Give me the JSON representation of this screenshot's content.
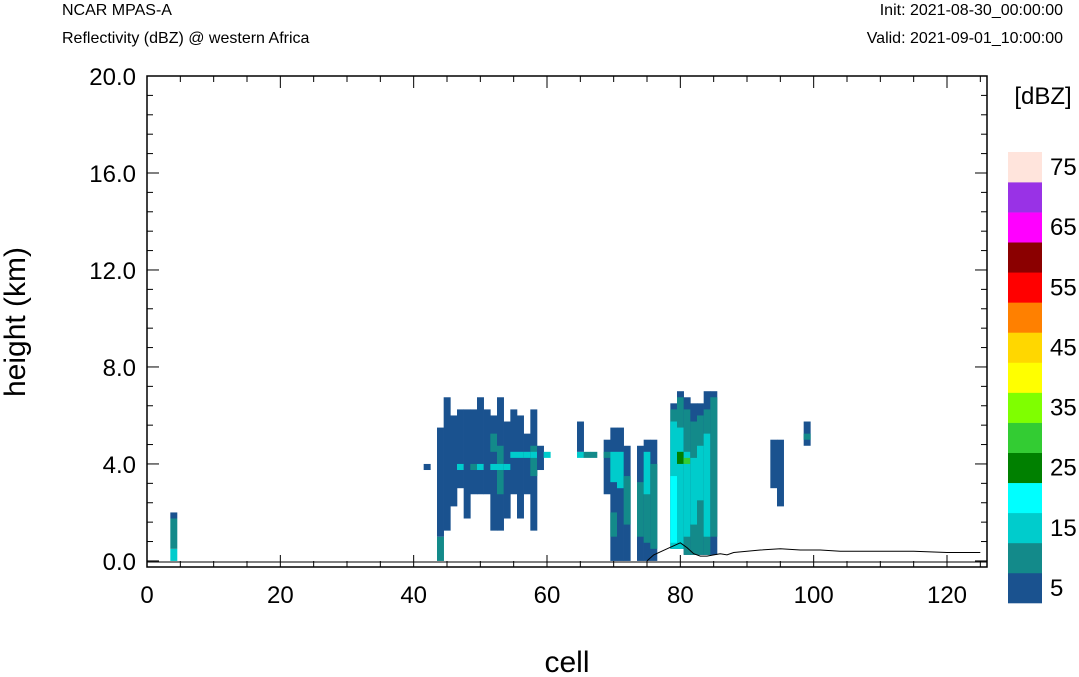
{
  "header": {
    "model": "NCAR MPAS-A",
    "field": "Reflectivity (dBZ) @ western Africa",
    "init": "Init: 2021-08-30_00:00:00",
    "valid": "Valid: 2021-09-01_10:00:00"
  },
  "chart_data": {
    "type": "heatmap",
    "title": "",
    "xlabel": "cell",
    "ylabel": "height (km)",
    "xlim": [
      0,
      126
    ],
    "ylim": [
      -0.25,
      20
    ],
    "xticks": [
      0,
      20,
      40,
      60,
      80,
      100,
      120
    ],
    "xtick_labels": [
      "0",
      "20",
      "40",
      "60",
      "80",
      "100",
      "120"
    ],
    "yticks": [
      0,
      4,
      8,
      12,
      16,
      20
    ],
    "ytick_labels": [
      "0.0",
      "4.0",
      "8.0",
      "12.0",
      "16.0",
      "20.0"
    ],
    "grid": false,
    "legend": "colorbar right",
    "colorbar": {
      "unit": "[dBZ]",
      "levels": [
        5,
        10,
        15,
        20,
        25,
        30,
        35,
        40,
        45,
        50,
        55,
        60,
        65,
        70,
        75
      ],
      "labels": [
        "5",
        "15",
        "25",
        "35",
        "45",
        "55",
        "65",
        "75"
      ],
      "colors": [
        "#1a528f",
        "#138a8a",
        "#00cccc",
        "#00ffff",
        "#008000",
        "#33cc33",
        "#7fff00",
        "#ffff00",
        "#ffd700",
        "#ff8000",
        "#ff0000",
        "#8b0000",
        "#ff00ff",
        "#9932e6",
        "#ffe4dc"
      ]
    },
    "cell_height_km": 0.5,
    "columns": [
      {
        "x": 4,
        "runs": [
          [
            0,
            0.5,
            15
          ],
          [
            0.5,
            1.75,
            10
          ],
          [
            1.75,
            2.0,
            5
          ]
        ]
      },
      {
        "x": 42,
        "runs": [
          [
            3.75,
            4.0,
            5
          ]
        ]
      },
      {
        "x": 44,
        "runs": [
          [
            0,
            1.0,
            10
          ],
          [
            1.0,
            5.5,
            5
          ]
        ]
      },
      {
        "x": 45,
        "runs": [
          [
            1.25,
            6.75,
            5
          ]
        ]
      },
      {
        "x": 46,
        "runs": [
          [
            2.25,
            6.0,
            5
          ]
        ]
      },
      {
        "x": 47,
        "runs": [
          [
            3.0,
            6.25,
            5
          ],
          [
            3.75,
            4.0,
            15
          ]
        ]
      },
      {
        "x": 48,
        "runs": [
          [
            1.75,
            6.25,
            5
          ]
        ]
      },
      {
        "x": 49,
        "runs": [
          [
            2.75,
            6.25,
            5
          ],
          [
            3.75,
            4.0,
            10
          ]
        ]
      },
      {
        "x": 50,
        "runs": [
          [
            2.75,
            6.75,
            5
          ],
          [
            3.75,
            4.0,
            15
          ]
        ]
      },
      {
        "x": 51,
        "runs": [
          [
            2.75,
            6.25,
            5
          ]
        ]
      },
      {
        "x": 52,
        "runs": [
          [
            1.25,
            6.0,
            5
          ],
          [
            3.75,
            4.0,
            15
          ],
          [
            4.5,
            5.25,
            10
          ]
        ]
      },
      {
        "x": 53,
        "runs": [
          [
            1.25,
            6.75,
            5
          ],
          [
            2.75,
            4.75,
            10
          ],
          [
            3.75,
            4.0,
            15
          ]
        ]
      },
      {
        "x": 54,
        "runs": [
          [
            1.75,
            5.75,
            5
          ],
          [
            3.75,
            4.0,
            15
          ]
        ]
      },
      {
        "x": 55,
        "runs": [
          [
            2.75,
            6.25,
            5
          ],
          [
            4.25,
            4.5,
            15
          ]
        ]
      },
      {
        "x": 56,
        "runs": [
          [
            1.75,
            6.0,
            5
          ],
          [
            4.25,
            4.5,
            15
          ]
        ]
      },
      {
        "x": 57,
        "runs": [
          [
            2.75,
            5.25,
            5
          ],
          [
            4.25,
            4.5,
            15
          ]
        ]
      },
      {
        "x": 58,
        "runs": [
          [
            1.25,
            6.25,
            5
          ],
          [
            3.5,
            4.75,
            10
          ],
          [
            4.25,
            4.5,
            15
          ]
        ]
      },
      {
        "x": 59,
        "runs": [
          [
            3.75,
            4.75,
            5
          ]
        ]
      },
      {
        "x": 60,
        "runs": [
          [
            4.25,
            4.5,
            15
          ]
        ]
      },
      {
        "x": 65,
        "runs": [
          [
            4.25,
            4.5,
            15
          ],
          [
            4.5,
            5.75,
            5
          ]
        ]
      },
      {
        "x": 66,
        "runs": [
          [
            4.25,
            4.5,
            10
          ]
        ]
      },
      {
        "x": 67,
        "runs": [
          [
            4.25,
            4.5,
            10
          ]
        ]
      },
      {
        "x": 69,
        "runs": [
          [
            2.75,
            5.0,
            5
          ],
          [
            4.25,
            4.5,
            10
          ]
        ]
      },
      {
        "x": 70,
        "runs": [
          [
            0,
            5.5,
            5
          ],
          [
            1.0,
            2.0,
            10
          ],
          [
            3.25,
            4.5,
            15
          ]
        ]
      },
      {
        "x": 71,
        "runs": [
          [
            0,
            5.5,
            5
          ],
          [
            3.0,
            4.5,
            15
          ]
        ]
      },
      {
        "x": 72,
        "runs": [
          [
            0,
            4.75,
            5
          ],
          [
            1.5,
            3.5,
            10
          ]
        ]
      },
      {
        "x": 74,
        "runs": [
          [
            0,
            4.75,
            5
          ],
          [
            1.0,
            3.25,
            10
          ]
        ]
      },
      {
        "x": 75,
        "runs": [
          [
            0,
            5.0,
            5
          ],
          [
            0.75,
            3.75,
            10
          ],
          [
            2.75,
            4.5,
            15
          ]
        ]
      },
      {
        "x": 76,
        "runs": [
          [
            0,
            5.0,
            5
          ],
          [
            0.5,
            4.0,
            10
          ]
        ]
      },
      {
        "x": 79,
        "runs": [
          [
            0.5,
            6.5,
            5
          ],
          [
            0.5,
            6.25,
            10
          ],
          [
            0.5,
            5.75,
            15
          ],
          [
            0.75,
            3.5,
            20
          ]
        ]
      },
      {
        "x": 80,
        "runs": [
          [
            0.5,
            7.0,
            5
          ],
          [
            0.5,
            6.75,
            10
          ],
          [
            0.5,
            5.5,
            15
          ],
          [
            4.0,
            4.5,
            25
          ]
        ]
      },
      {
        "x": 81,
        "runs": [
          [
            0.25,
            6.75,
            5
          ],
          [
            0.25,
            6.25,
            10
          ],
          [
            1.0,
            4.5,
            15
          ],
          [
            4.0,
            4.25,
            30
          ]
        ]
      },
      {
        "x": 82,
        "runs": [
          [
            0.25,
            6.5,
            5
          ],
          [
            0.25,
            5.75,
            10
          ],
          [
            1.5,
            4.25,
            15
          ]
        ]
      },
      {
        "x": 83,
        "runs": [
          [
            0.25,
            6.5,
            5
          ],
          [
            0.25,
            6.0,
            10
          ],
          [
            2.5,
            4.75,
            15
          ]
        ]
      },
      {
        "x": 84,
        "runs": [
          [
            0.25,
            7.0,
            5
          ],
          [
            0.25,
            6.25,
            10
          ],
          [
            1.0,
            5.25,
            15
          ]
        ]
      },
      {
        "x": 85,
        "runs": [
          [
            0.25,
            7.0,
            5
          ],
          [
            1.0,
            6.75,
            10
          ]
        ]
      },
      {
        "x": 94,
        "runs": [
          [
            3.0,
            5.0,
            5
          ]
        ]
      },
      {
        "x": 95,
        "runs": [
          [
            2.25,
            5.0,
            5
          ]
        ]
      },
      {
        "x": 99,
        "runs": [
          [
            4.75,
            5.75,
            5
          ],
          [
            5.0,
            5.25,
            10
          ]
        ]
      }
    ],
    "terrain": [
      [
        75,
        0
      ],
      [
        76,
        0.25
      ],
      [
        78,
        0.5
      ],
      [
        80,
        0.75
      ],
      [
        81,
        0.55
      ],
      [
        82,
        0.3
      ],
      [
        83,
        0.2
      ],
      [
        84,
        0.2
      ],
      [
        85,
        0.25
      ],
      [
        86,
        0.3
      ],
      [
        87,
        0.25
      ],
      [
        88,
        0.35
      ],
      [
        90,
        0.4
      ],
      [
        92,
        0.45
      ],
      [
        95,
        0.5
      ],
      [
        98,
        0.45
      ],
      [
        101,
        0.45
      ],
      [
        104,
        0.4
      ],
      [
        110,
        0.4
      ],
      [
        115,
        0.4
      ],
      [
        120,
        0.35
      ],
      [
        125,
        0.35
      ]
    ]
  }
}
